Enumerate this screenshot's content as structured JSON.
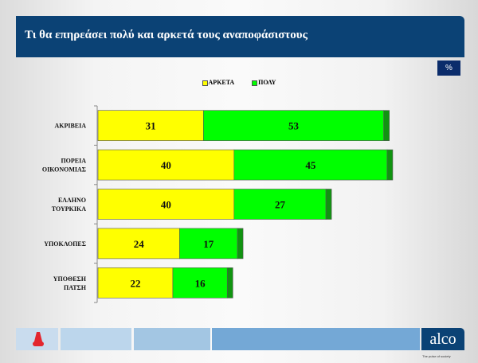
{
  "header": {
    "title": "Τι θα επηρεάσει πολύ και αρκετά τους αναποφάσιστους",
    "unit": "%"
  },
  "footer": {
    "brand": "alco",
    "tagline": "The pulse of society"
  },
  "colors": {
    "header": "#0b4275",
    "arketa": "#ffff00",
    "poly": "#00ff00",
    "cap": "#119411"
  },
  "chart_data": {
    "type": "bar",
    "orientation": "horizontal",
    "stacked": true,
    "categories": [
      "ΑΚΡΙΒΕΙΑ",
      "ΠΟΡΕΙΑ ΟΙΚΟΝΟΜΙΑΣ",
      "ΕΛΛΗΝΟ ΤΟΥΡΚΙΚΑ",
      "ΥΠΟΚΛΟΠΕΣ",
      "ΥΠΟΘΕΣΗ ΠΑΤΣΗ"
    ],
    "series": [
      {
        "name": "ΑΡΚΕΤΑ",
        "color": "#ffff00",
        "values": [
          31,
          40,
          40,
          24,
          22
        ]
      },
      {
        "name": "ΠΟΛΥ",
        "color": "#00ff00",
        "values": [
          53,
          45,
          27,
          17,
          16
        ]
      }
    ],
    "xlim": [
      0,
      86
    ],
    "legend": "top-center",
    "grid": false
  }
}
